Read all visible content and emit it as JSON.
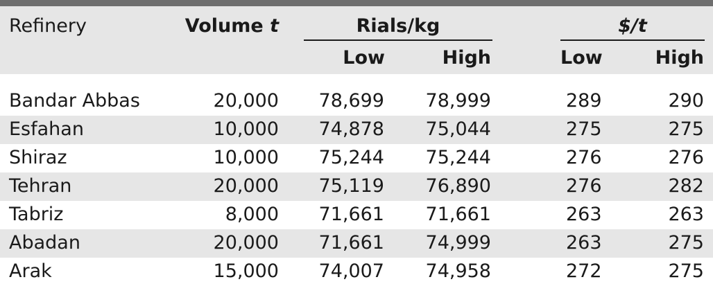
{
  "table": {
    "headers": {
      "refinery": "Refinery",
      "volume_prefix": "Volume ",
      "volume_unit": "t",
      "rials": "Rials/kg",
      "usd": "$/t",
      "low": "Low",
      "high": "High"
    },
    "rows": [
      {
        "refinery": "Bandar Abbas",
        "volume": "20,000",
        "rials_low": "78,699",
        "rials_high": "78,999",
        "usd_low": "289",
        "usd_high": "290"
      },
      {
        "refinery": "Esfahan",
        "volume": "10,000",
        "rials_low": "74,878",
        "rials_high": "75,044",
        "usd_low": "275",
        "usd_high": "275"
      },
      {
        "refinery": "Shiraz",
        "volume": "10,000",
        "rials_low": "75,244",
        "rials_high": "75,244",
        "usd_low": "276",
        "usd_high": "276"
      },
      {
        "refinery": "Tehran",
        "volume": "20,000",
        "rials_low": "75,119",
        "rials_high": "76,890",
        "usd_low": "276",
        "usd_high": "282"
      },
      {
        "refinery": "Tabriz",
        "volume": "8,000",
        "rials_low": "71,661",
        "rials_high": "71,661",
        "usd_low": "263",
        "usd_high": "263"
      },
      {
        "refinery": "Abadan",
        "volume": "20,000",
        "rials_low": "71,661",
        "rials_high": "74,999",
        "usd_low": "263",
        "usd_high": "275"
      },
      {
        "refinery": "Arak",
        "volume": "15,000",
        "rials_low": "74,007",
        "rials_high": "74,958",
        "usd_low": "272",
        "usd_high": "275"
      }
    ]
  }
}
